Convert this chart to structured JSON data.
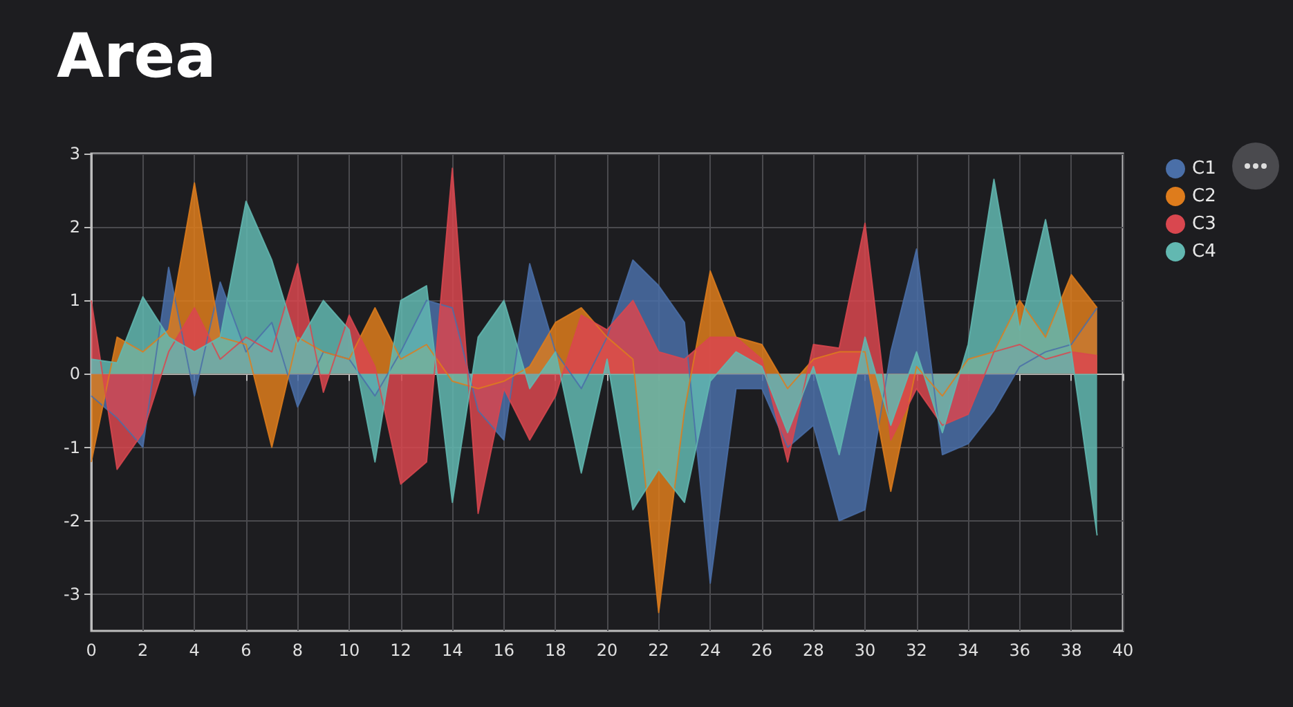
{
  "chart_data": {
    "type": "area",
    "title": "Area",
    "x": [
      0,
      1,
      2,
      3,
      4,
      5,
      6,
      7,
      8,
      9,
      10,
      11,
      12,
      13,
      14,
      15,
      16,
      17,
      18,
      19,
      20,
      21,
      22,
      23,
      24,
      25,
      26,
      27,
      28,
      29,
      30,
      31,
      32,
      33,
      34,
      35,
      36,
      37,
      38,
      39
    ],
    "series": [
      {
        "name": "C1",
        "color": "#4a6fa8",
        "values": [
          -0.3,
          -0.6,
          -1.0,
          1.45,
          -0.3,
          1.25,
          0.3,
          0.7,
          -0.45,
          0.3,
          0.2,
          -0.3,
          0.3,
          1.0,
          0.9,
          -0.5,
          -0.9,
          1.5,
          0.3,
          -0.2,
          0.5,
          1.55,
          1.2,
          0.7,
          -2.85,
          -0.2,
          -0.2,
          -1.0,
          -0.7,
          -2.0,
          -1.85,
          0.3,
          1.7,
          -1.1,
          -0.95,
          -0.5,
          0.1,
          0.3,
          0.4,
          0.9
        ]
      },
      {
        "name": "C2",
        "color": "#de7c1c",
        "values": [
          -1.2,
          0.5,
          0.3,
          0.6,
          2.6,
          0.5,
          0.4,
          -1.0,
          0.5,
          0.3,
          0.2,
          0.9,
          0.2,
          0.4,
          -0.1,
          -0.2,
          -0.1,
          0.1,
          0.7,
          0.9,
          0.5,
          0.2,
          -3.25,
          -0.5,
          1.4,
          0.5,
          0.4,
          -0.2,
          0.2,
          0.3,
          0.3,
          -1.6,
          0.1,
          -0.3,
          0.2,
          0.3,
          1.0,
          0.5,
          1.35,
          0.9
        ]
      },
      {
        "name": "C3",
        "color": "#d9474f",
        "values": [
          1.0,
          -1.3,
          -0.8,
          0.3,
          0.9,
          0.2,
          0.5,
          0.3,
          1.5,
          -0.25,
          0.8,
          0.1,
          -1.5,
          -1.2,
          2.8,
          -1.9,
          -0.2,
          -0.9,
          -0.3,
          0.8,
          0.6,
          1.0,
          0.3,
          0.2,
          0.5,
          0.5,
          0.2,
          -1.2,
          0.4,
          0.35,
          2.05,
          -0.9,
          -0.2,
          -0.7,
          -0.55,
          0.3,
          0.4,
          0.2,
          0.3,
          0.25
        ]
      },
      {
        "name": "C4",
        "color": "#62b8b1",
        "values": [
          0.2,
          0.15,
          1.05,
          0.5,
          0.3,
          0.5,
          2.35,
          1.55,
          0.4,
          1.0,
          0.6,
          -1.2,
          1.0,
          1.2,
          -1.75,
          0.5,
          1.0,
          -0.2,
          0.3,
          -1.35,
          0.2,
          -1.85,
          -1.3,
          -1.75,
          -0.1,
          0.3,
          0.1,
          -0.8,
          0.1,
          -1.1,
          0.5,
          -0.7,
          0.3,
          -0.8,
          0.4,
          2.65,
          0.6,
          2.1,
          0.3,
          -2.2
        ]
      }
    ],
    "xlim": [
      0,
      40
    ],
    "xticks": [
      0,
      2,
      4,
      6,
      8,
      10,
      12,
      14,
      16,
      18,
      20,
      22,
      24,
      26,
      28,
      30,
      32,
      34,
      36,
      38,
      40
    ],
    "ylim": [
      -3.5,
      3
    ],
    "yticks": [
      -3,
      -2,
      -1,
      0,
      1,
      2,
      3
    ],
    "grid": true,
    "legend": "top right"
  }
}
